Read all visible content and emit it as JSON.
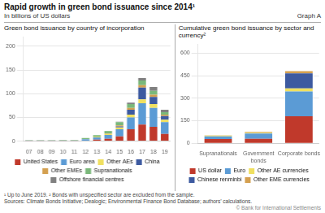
{
  "title": "Rapid growth in green bond issuance since 2014¹",
  "subtitle": "In billions of US dollars",
  "annotations": [
    "Graph A",
    "¹ Up to June 2019.  ² Bonds with unspecified sector are excluded from the sample.",
    "Sources: Climate Bonds Initiative; Dealogic; Environmental Finance Bond Database; authors’ calculations.",
    "© Bank for International Settlements"
  ],
  "chart_data": [
    {
      "type": "bar",
      "stacked": true,
      "grid": true,
      "legend": "bottom",
      "title": "Green bond issuance by country of incorporation",
      "categories": [
        "07",
        "08",
        "09",
        "10",
        "11",
        "12",
        "13",
        "14",
        "15",
        "16",
        "17",
        "18",
        "19"
      ],
      "series": [
        {
          "name": "United States",
          "color": "#c0392b",
          "values": [
            0.5,
            0.5,
            0.5,
            0.5,
            0.5,
            1,
            3,
            5,
            10,
            25,
            35,
            30,
            15
          ]
        },
        {
          "name": "Euro area",
          "color": "#5b9bd5",
          "values": [
            1,
            1,
            1,
            1,
            1,
            3,
            5,
            8,
            15,
            25,
            45,
            40,
            25
          ]
        },
        {
          "name": "Other AEs",
          "color": "#f0e060",
          "values": [
            0.2,
            0.2,
            0.2,
            0.2,
            0.2,
            0.5,
            1,
            2,
            4,
            6,
            8,
            8,
            5
          ]
        },
        {
          "name": "China",
          "color": "#3d5aa0",
          "values": [
            0,
            0,
            0,
            0,
            0,
            0,
            0,
            0,
            2,
            10,
            25,
            15,
            8
          ]
        },
        {
          "name": "Other EMEs",
          "color": "#d4a050",
          "values": [
            0,
            0,
            0,
            0,
            0,
            0,
            0.5,
            1,
            2,
            4,
            5,
            5,
            3
          ]
        },
        {
          "name": "Supranationals",
          "color": "#7ab87a",
          "values": [
            0.5,
            0.5,
            0.5,
            1,
            1,
            2,
            3,
            5,
            7,
            8,
            10,
            8,
            5
          ]
        },
        {
          "name": "Offshore financial centres",
          "color": "#808080",
          "values": [
            0,
            0,
            0,
            0,
            0,
            0,
            0,
            0.5,
            1,
            3,
            5,
            8,
            5
          ]
        }
      ],
      "ylim": [
        0,
        220
      ],
      "yticks": [
        0,
        50,
        100,
        150,
        200
      ]
    },
    {
      "type": "bar",
      "stacked": true,
      "grid": true,
      "legend": "bottom",
      "title": "Cumulative green bond issuance by sector and currency²",
      "categories": [
        "Supranationals",
        "Government\nbonds",
        "Corporate bonds"
      ],
      "series": [
        {
          "name": "US dollar",
          "color": "#c0392b",
          "values": [
            28,
            30,
            180
          ]
        },
        {
          "name": "Euro",
          "color": "#5b9bd5",
          "values": [
            18,
            35,
            165
          ]
        },
        {
          "name": "Other AE currencies",
          "color": "#f0e060",
          "values": [
            5,
            5,
            20
          ]
        },
        {
          "name": "Chinese renminbi",
          "color": "#3d5aa0",
          "values": [
            0,
            2,
            100
          ]
        },
        {
          "name": "Other EME currencies",
          "color": "#d4a050",
          "values": [
            2,
            3,
            15
          ]
        }
      ],
      "ylim": [
        0,
        660
      ],
      "yticks": [
        0,
        150,
        300,
        450,
        600
      ]
    }
  ]
}
